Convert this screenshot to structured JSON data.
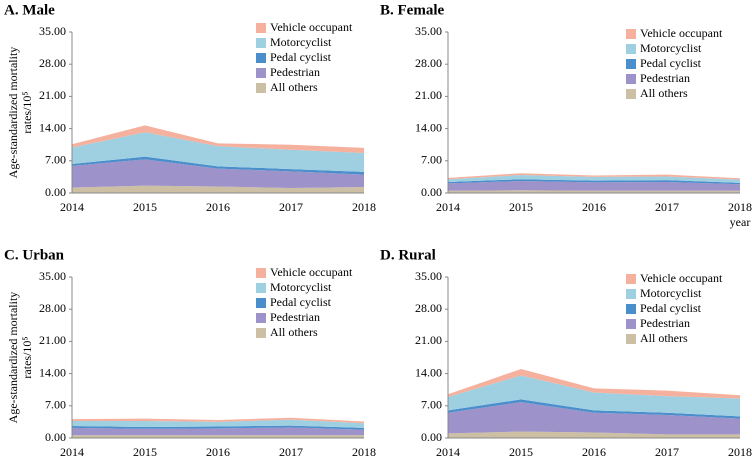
{
  "chart_data": [
    {
      "type": "area",
      "stacked": true,
      "title": "A. Male",
      "y_label": [
        "Age-standardized mortality",
        "rates/10⁵"
      ],
      "categories": [
        "2014",
        "2015",
        "2016",
        "2017",
        "2018"
      ],
      "ylim": [
        0,
        35
      ],
      "yticks": [
        {
          "value": 0,
          "label": "0.00"
        },
        {
          "value": 7,
          "label": "7.00"
        },
        {
          "value": 14,
          "label": "14.00"
        },
        {
          "value": 21,
          "label": "21.00"
        },
        {
          "value": 28,
          "label": "28.00"
        },
        {
          "value": 35,
          "label": "35.00"
        }
      ],
      "series": [
        {
          "name": "All others",
          "color": "#cdbfa3",
          "values": [
            1.2,
            1.6,
            1.4,
            1.1,
            1.3
          ]
        },
        {
          "name": "Pedestrian",
          "color": "#9d92c9",
          "values": [
            4.7,
            5.7,
            3.9,
            3.6,
            2.7
          ]
        },
        {
          "name": "Pedal cyclist",
          "color": "#4a8fcb",
          "values": [
            0.4,
            0.6,
            0.5,
            0.5,
            0.6
          ]
        },
        {
          "name": "Motorcyclist",
          "color": "#9fd0e2",
          "values": [
            3.6,
            5.3,
            4.4,
            4.2,
            4.1
          ]
        },
        {
          "name": "Vehicle occupant",
          "color": "#f5b19d",
          "values": [
            0.7,
            1.5,
            0.6,
            1.1,
            1.1
          ]
        }
      ]
    },
    {
      "type": "area",
      "stacked": true,
      "title": "B. Female",
      "x_label": "year",
      "categories": [
        "2014",
        "2015",
        "2016",
        "2017",
        "2018"
      ],
      "ylim": [
        0,
        35
      ],
      "yticks": [
        {
          "value": 0,
          "label": "0.00"
        },
        {
          "value": 7,
          "label": "7.00"
        },
        {
          "value": 14,
          "label": "14.00"
        },
        {
          "value": 21,
          "label": "21.00"
        },
        {
          "value": 28,
          "label": "28.00"
        },
        {
          "value": 35,
          "label": "35.00"
        }
      ],
      "series": [
        {
          "name": "All others",
          "color": "#cdbfa3",
          "values": [
            0.5,
            0.6,
            0.5,
            0.5,
            0.5
          ]
        },
        {
          "name": "Pedestrian",
          "color": "#9d92c9",
          "values": [
            1.6,
            2.0,
            1.8,
            1.9,
            1.4
          ]
        },
        {
          "name": "Pedal cyclist",
          "color": "#4a8fcb",
          "values": [
            0.3,
            0.4,
            0.4,
            0.4,
            0.3
          ]
        },
        {
          "name": "Motorcyclist",
          "color": "#9fd0e2",
          "values": [
            0.6,
            0.9,
            0.8,
            0.8,
            0.7
          ]
        },
        {
          "name": "Vehicle occupant",
          "color": "#f5b19d",
          "values": [
            0.3,
            0.4,
            0.3,
            0.4,
            0.3
          ]
        }
      ]
    },
    {
      "type": "area",
      "stacked": true,
      "title": "C. Urban",
      "y_label": [
        "Age-standardized mortality",
        "rates/10⁵"
      ],
      "categories": [
        "2014",
        "2015",
        "2016",
        "2017",
        "2018"
      ],
      "ylim": [
        0,
        35
      ],
      "yticks": [
        {
          "value": 0,
          "label": "0.00"
        },
        {
          "value": 7,
          "label": "7.00"
        },
        {
          "value": 14,
          "label": "14.00"
        },
        {
          "value": 21,
          "label": "21.00"
        },
        {
          "value": 28,
          "label": "28.00"
        },
        {
          "value": 35,
          "label": "35.00"
        }
      ],
      "series": [
        {
          "name": "All others",
          "color": "#cdbfa3",
          "values": [
            0.6,
            0.6,
            0.6,
            0.6,
            0.6
          ]
        },
        {
          "name": "Pedestrian",
          "color": "#9d92c9",
          "values": [
            1.6,
            1.4,
            1.5,
            1.7,
            1.2
          ]
        },
        {
          "name": "Pedal cyclist",
          "color": "#4a8fcb",
          "values": [
            0.4,
            0.4,
            0.4,
            0.4,
            0.4
          ]
        },
        {
          "name": "Motorcyclist",
          "color": "#9fd0e2",
          "values": [
            1.1,
            1.3,
            1.0,
            1.3,
            1.0
          ]
        },
        {
          "name": "Vehicle occupant",
          "color": "#f5b19d",
          "values": [
            0.4,
            0.5,
            0.4,
            0.4,
            0.4
          ]
        }
      ]
    },
    {
      "type": "area",
      "stacked": true,
      "title": "D. Rural",
      "categories": [
        "2014",
        "2015",
        "2016",
        "2017",
        "2018"
      ],
      "ylim": [
        0,
        35
      ],
      "yticks": [
        {
          "value": 0,
          "label": "0.00"
        },
        {
          "value": 7,
          "label": "7.00"
        },
        {
          "value": 14,
          "label": "14.00"
        },
        {
          "value": 21,
          "label": "21.00"
        },
        {
          "value": 28,
          "label": "28.00"
        },
        {
          "value": 35,
          "label": "35.00"
        }
      ],
      "series": [
        {
          "name": "All others",
          "color": "#cdbfa3",
          "values": [
            1.0,
            1.4,
            1.2,
            0.8,
            0.8
          ]
        },
        {
          "name": "Pedestrian",
          "color": "#9d92c9",
          "values": [
            4.5,
            6.4,
            4.3,
            4.2,
            3.4
          ]
        },
        {
          "name": "Pedal cyclist",
          "color": "#4a8fcb",
          "values": [
            0.5,
            0.6,
            0.5,
            0.5,
            0.5
          ]
        },
        {
          "name": "Motorcyclist",
          "color": "#9fd0e2",
          "values": [
            2.9,
            5.2,
            3.9,
            3.6,
            3.9
          ]
        },
        {
          "name": "Vehicle occupant",
          "color": "#f5b19d",
          "values": [
            0.6,
            1.4,
            0.9,
            1.2,
            0.7
          ]
        }
      ]
    }
  ]
}
